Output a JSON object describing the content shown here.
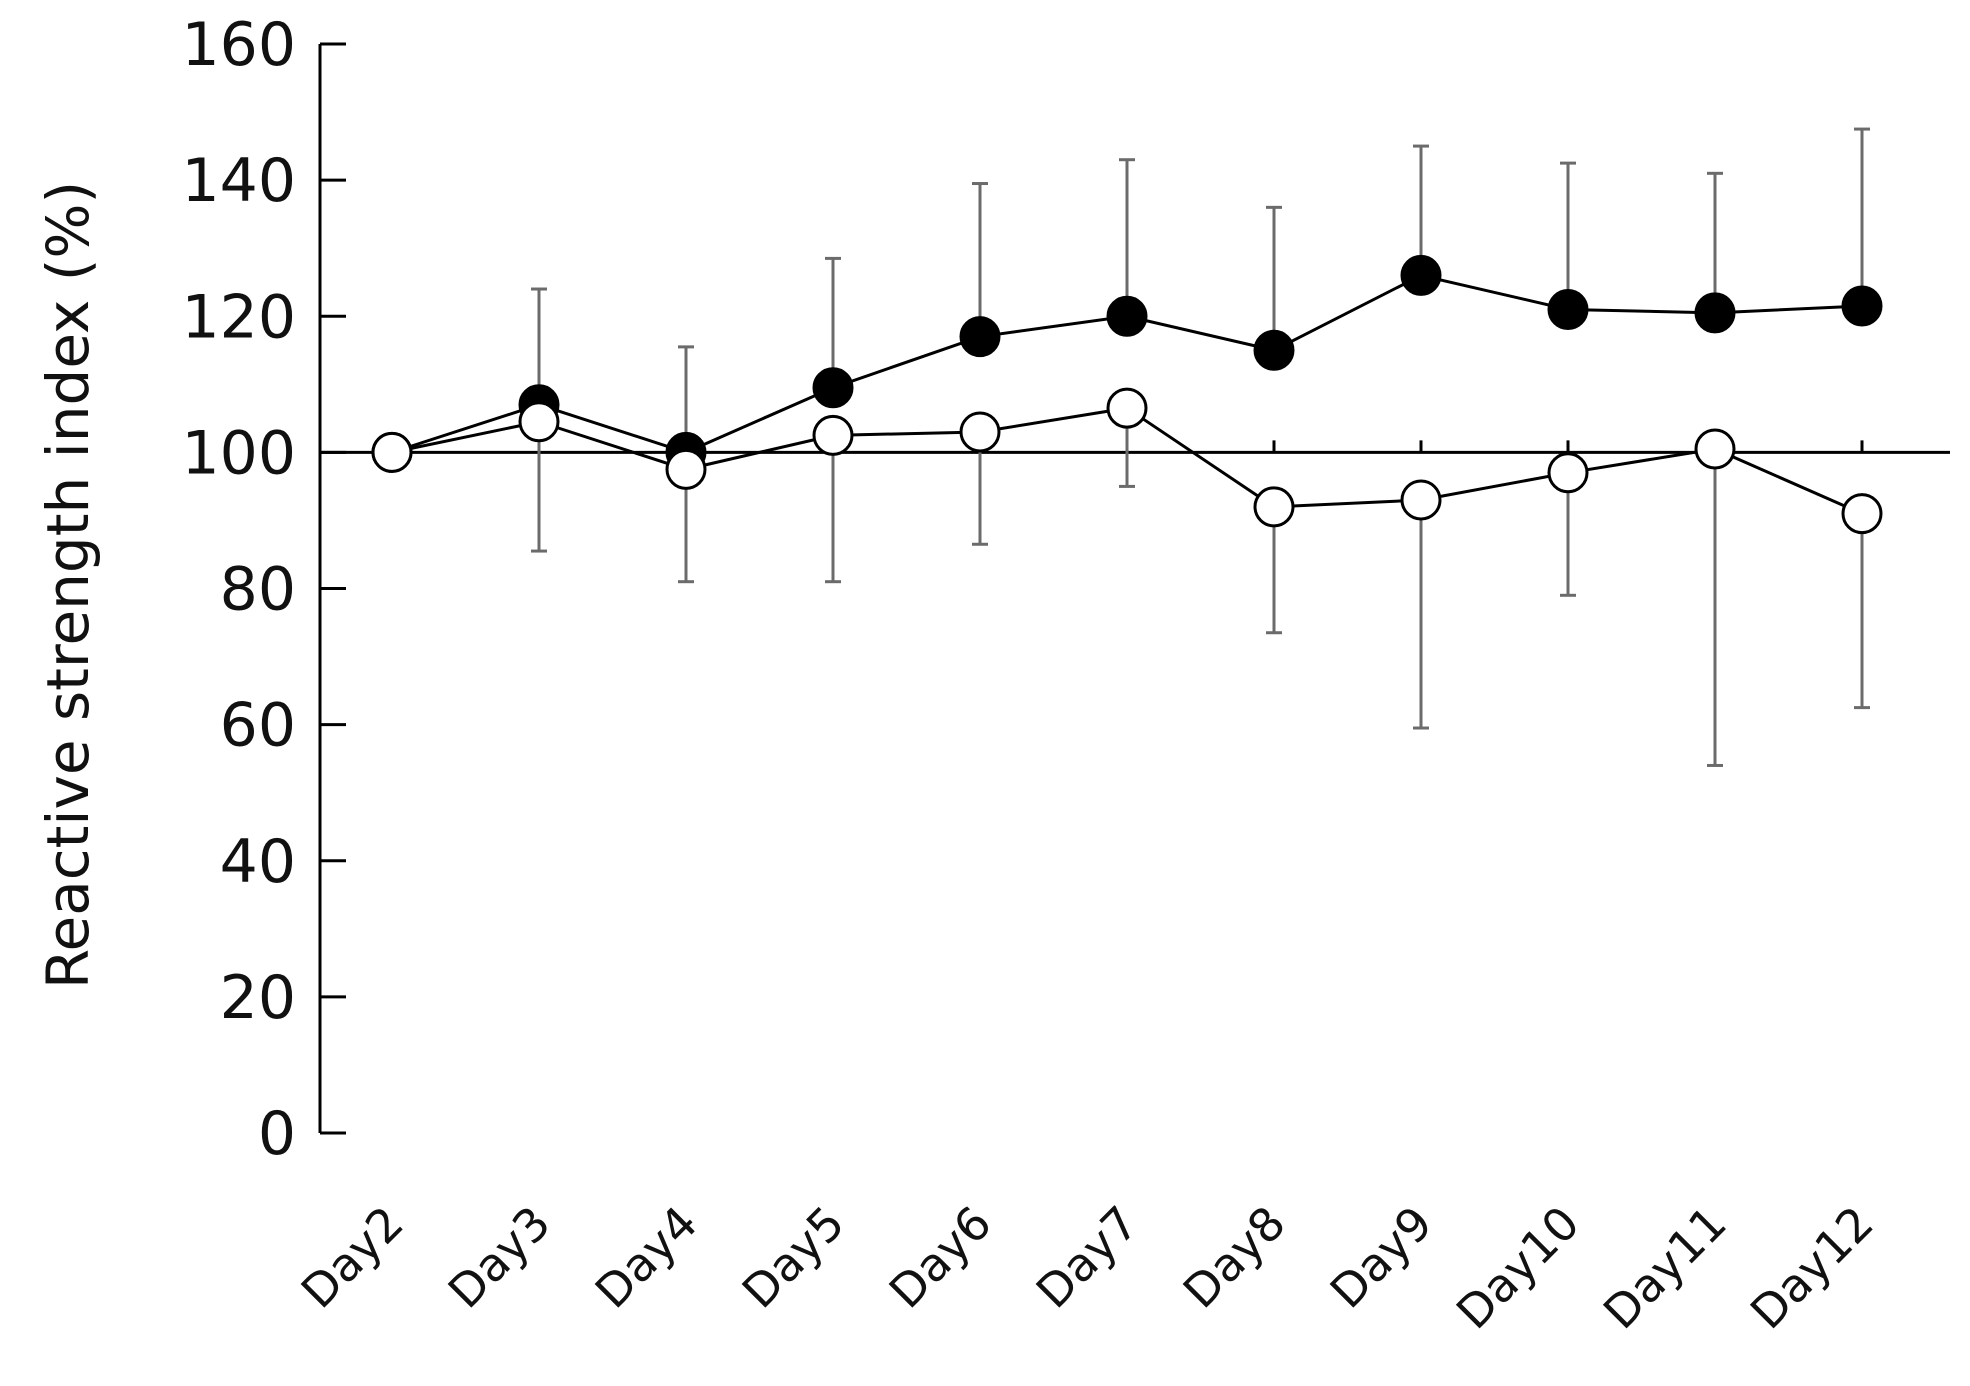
{
  "chart_data": {
    "type": "line",
    "title": "",
    "xlabel": "",
    "ylabel": "Reactive strength index (%)",
    "categories": [
      "Day2",
      "Day3",
      "Day4",
      "Day5",
      "Day6",
      "Day7",
      "Day8",
      "Day9",
      "Day10",
      "Day11",
      "Day12"
    ],
    "ylim": [
      0,
      160
    ],
    "yticks": [
      0,
      20,
      40,
      60,
      80,
      100,
      120,
      140,
      160
    ],
    "reference_line": 100,
    "grid": false,
    "legend": "none",
    "series": [
      {
        "marker": "filled-circle",
        "color": "#000000",
        "values": [
          100,
          107,
          100,
          109.5,
          117,
          120,
          115,
          126,
          121,
          120.5,
          121.5
        ],
        "error": [
          0,
          17,
          15.5,
          19,
          22.5,
          23,
          21,
          19,
          21.5,
          20.5,
          26
        ]
      },
      {
        "marker": "open-circle",
        "color": "#000000",
        "values": [
          100,
          104.5,
          97.5,
          102.5,
          103,
          106.5,
          92,
          93,
          97,
          100.5,
          91
        ],
        "error": [
          0,
          19,
          16.5,
          21.5,
          16.5,
          11.5,
          18.5,
          33.5,
          18,
          46.5,
          28.5
        ]
      }
    ]
  }
}
